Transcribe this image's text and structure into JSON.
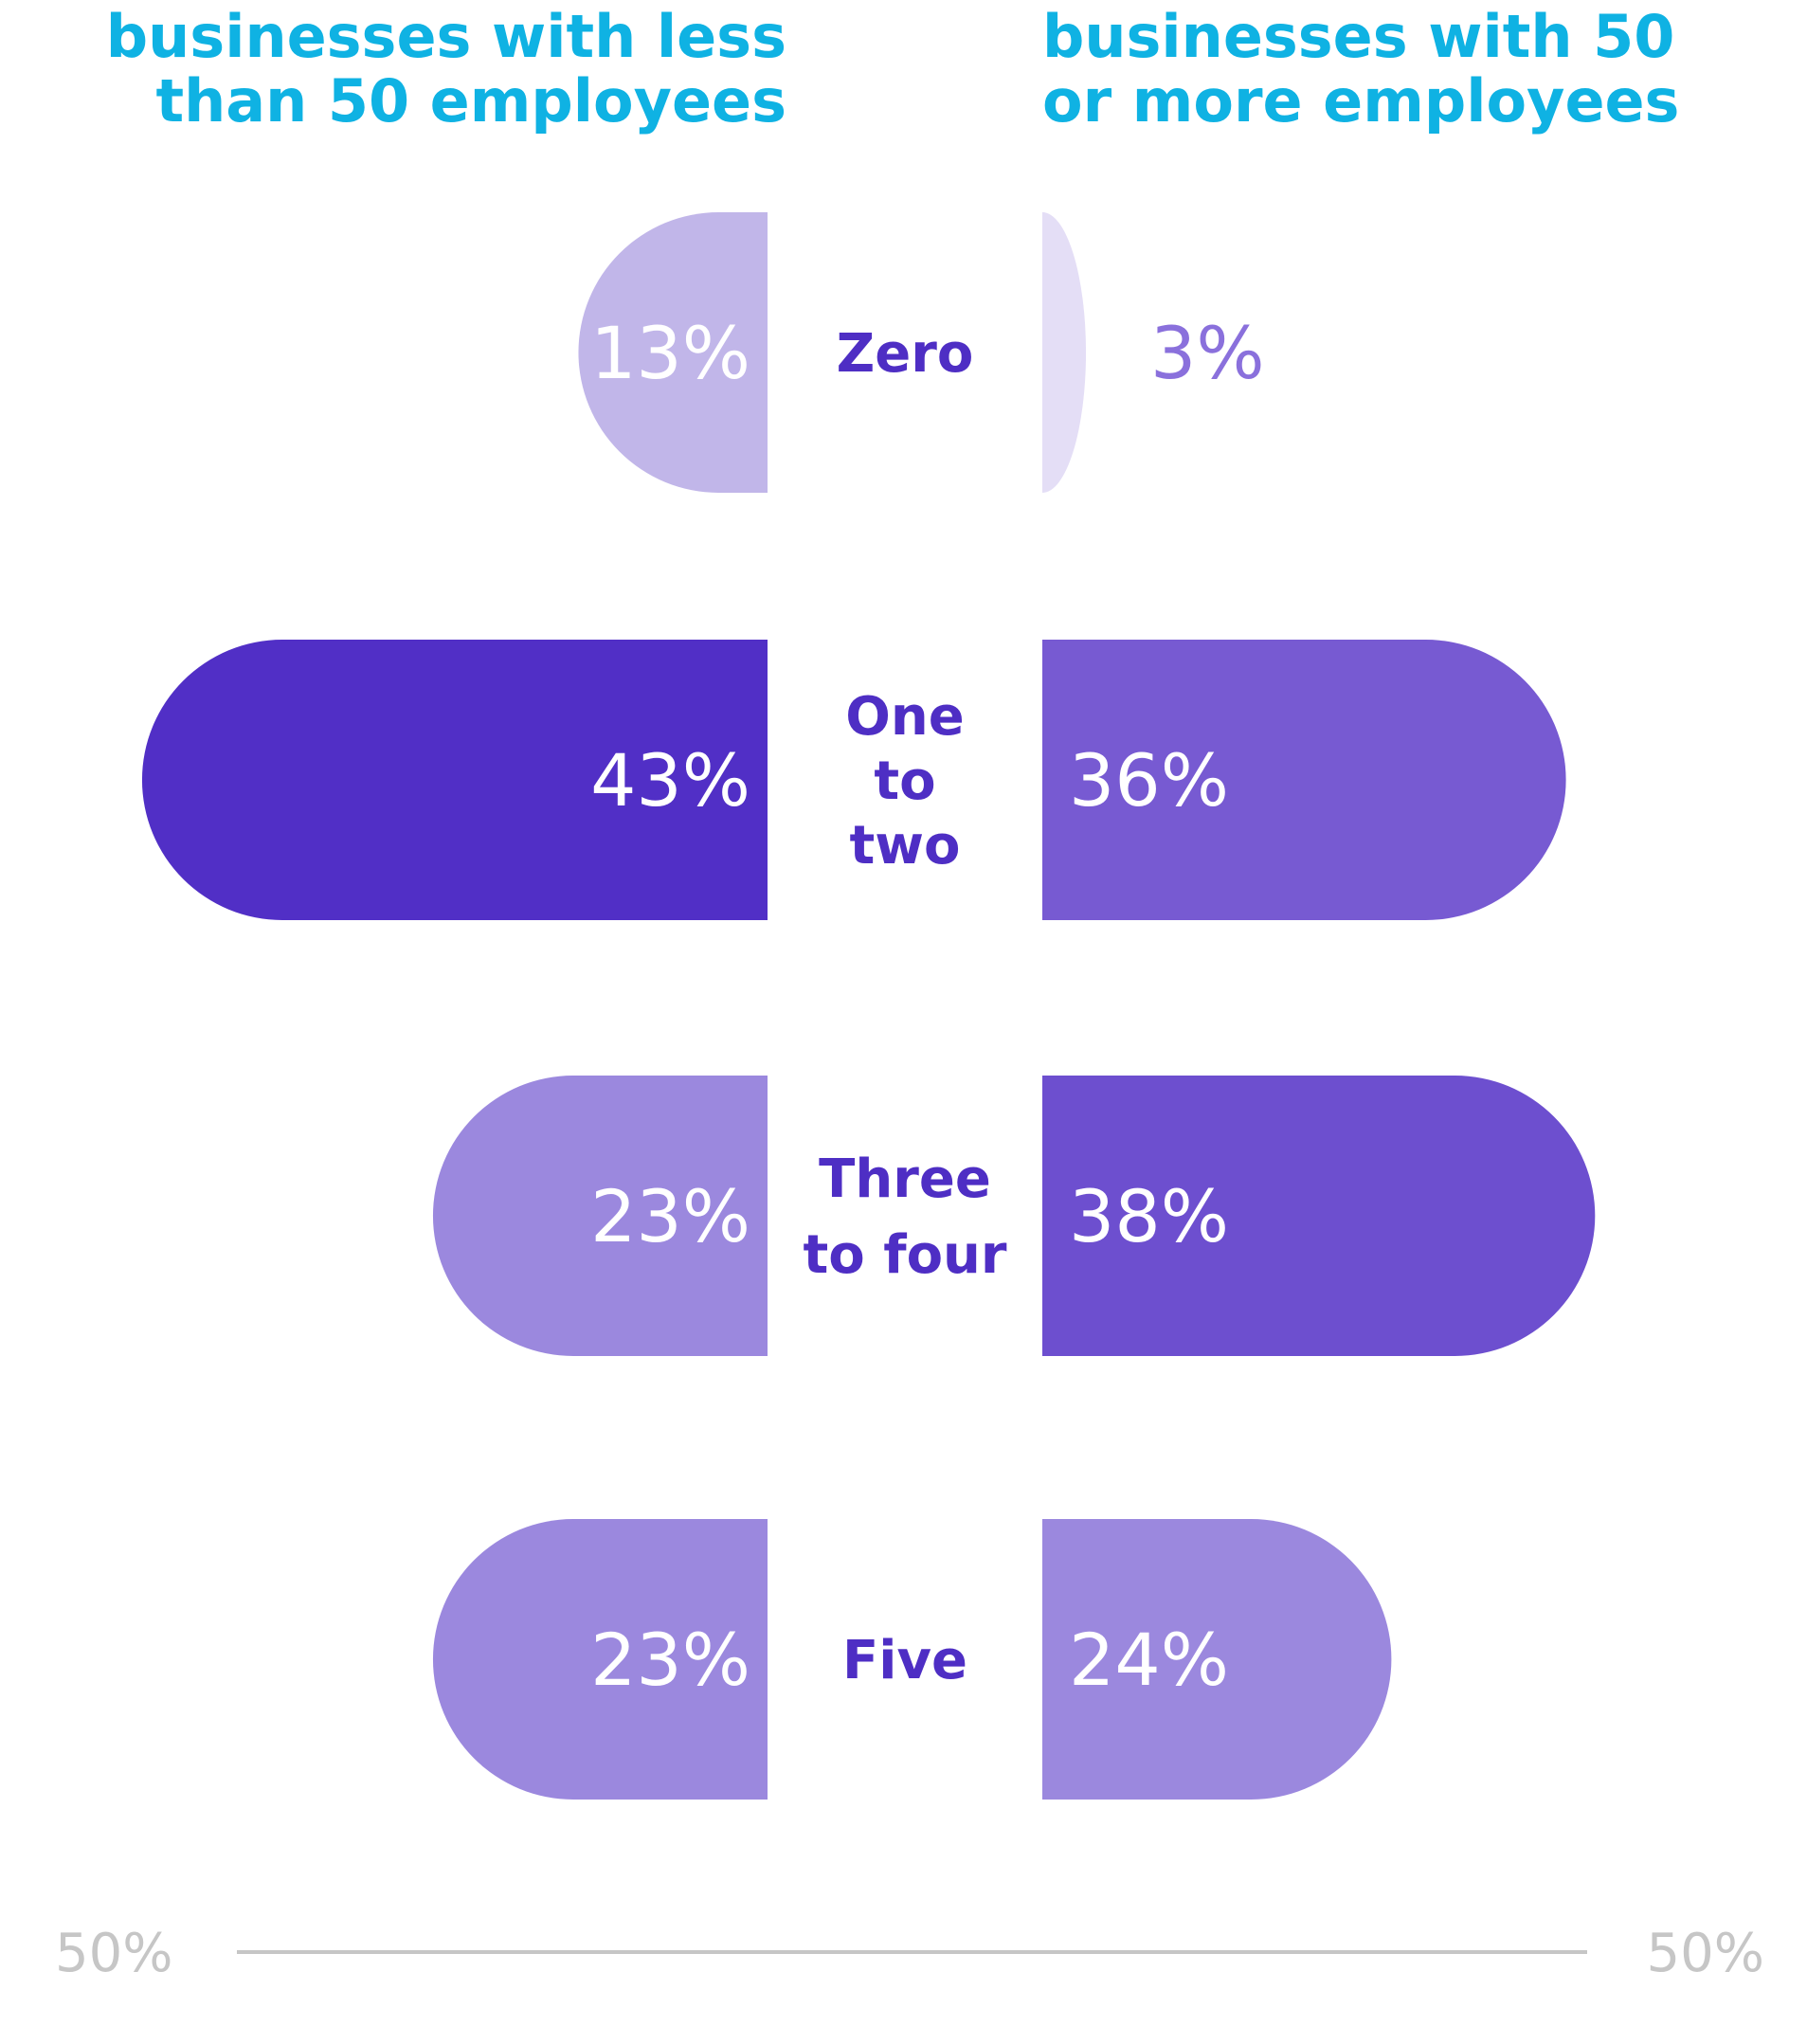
{
  "chart_data": {
    "type": "bar",
    "orientation": "horizontal-diverging",
    "categories": [
      "Zero",
      "One to two",
      "Three to four",
      "Five"
    ],
    "category_lines": [
      [
        "Zero"
      ],
      [
        "One",
        "to",
        "two"
      ],
      [
        "Three",
        "to four"
      ],
      [
        "Five"
      ]
    ],
    "series": [
      {
        "name": "businesses with less than 50 employees",
        "name_lines": [
          "businesses with less",
          "than 50 employees"
        ],
        "side": "left",
        "values": [
          13,
          43,
          23,
          23
        ],
        "value_labels": [
          "13%",
          "43%",
          "23%",
          "23%"
        ],
        "colors": [
          "#c1b6e9",
          "#512fc6",
          "#9b88de",
          "#9b88de"
        ]
      },
      {
        "name": "businesses with 50 or more employees",
        "name_lines": [
          "businesses with 50",
          "or more employees"
        ],
        "side": "right",
        "values": [
          3,
          36,
          38,
          24
        ],
        "value_labels": [
          "3%",
          "36%",
          "38%",
          "24%"
        ],
        "colors": [
          "#e4def6",
          "#775ad2",
          "#6d4fcf",
          "#9b88de"
        ]
      }
    ],
    "axis": {
      "min_label": "50%",
      "max_label": "50%",
      "range": [
        0,
        50
      ]
    },
    "colors": {
      "title": "#0fb2e3",
      "category_text": "#4e2ec4",
      "axis": "#c6c6c6",
      "outside_label": "#8a70dc"
    }
  }
}
